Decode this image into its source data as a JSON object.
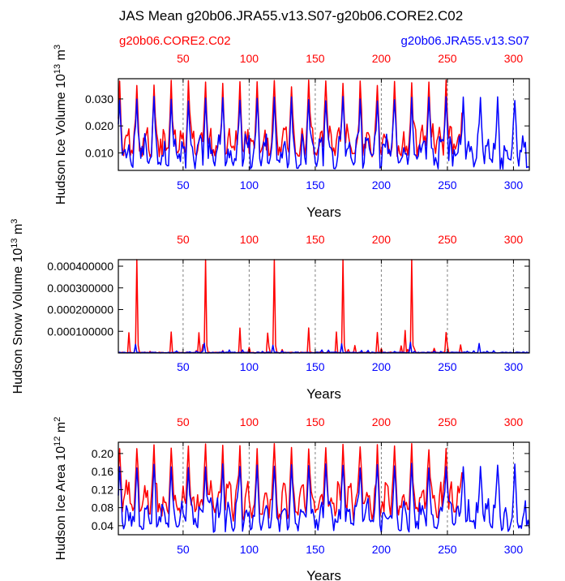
{
  "title": "JAS Mean g20b06.JRA55.v13.S07-g20b06.CORE2.C02",
  "legend": {
    "red_label": "g20b06.CORE2.C02",
    "blue_label": "g20b06.JRA55.v13.S07"
  },
  "colors": {
    "red": "#ff0000",
    "blue": "#0000ff",
    "axis": "#000000",
    "grid": "#808080"
  },
  "chart_data": [
    {
      "type": "line",
      "id": "ice-volume",
      "ylabel": "Hudson Ice Volume 10^13 m^3",
      "ylabel_base": "Hudson Ice Volume 10",
      "ylabel_exp": "13",
      "ylabel_unit": "m",
      "ylabel_unit_exp": "3",
      "xlabel": "Years",
      "xlim": [
        1,
        312
      ],
      "ylim": [
        0.0035,
        0.0375
      ],
      "yticks": [
        0.01,
        0.02,
        0.03
      ],
      "ytick_labels": [
        "0.010",
        "0.020",
        "0.030"
      ],
      "top_x_ticks": [
        50,
        100,
        150,
        200,
        250,
        300
      ],
      "bottom_x_ticks": [
        50,
        100,
        150,
        200,
        250,
        300
      ],
      "grid_x": [
        50,
        100,
        150,
        200,
        250,
        300
      ],
      "series": [
        {
          "name": "g20b06.CORE2.C02",
          "color": "#ff0000",
          "n": 261,
          "base": 0.0135,
          "amp": 0.0045,
          "min": 0.0085,
          "peak": 0.037,
          "secondary_peak": 0.026,
          "seed": 11
        },
        {
          "name": "g20b06.JRA55.v13.S07",
          "color": "#0000ff",
          "n": 312,
          "base": 0.01,
          "amp": 0.0045,
          "min": 0.004,
          "peak": 0.031,
          "secondary_peak": 0.022,
          "seed": 29
        }
      ]
    },
    {
      "type": "line",
      "id": "snow-volume",
      "ylabel": "Hudson Snow Volume 10^13 m^3",
      "ylabel_base": "Hudson Snow Volume 10",
      "ylabel_exp": "13",
      "ylabel_unit": "m",
      "ylabel_unit_exp": "3",
      "xlabel": "Years",
      "xlim": [
        1,
        312
      ],
      "ylim": [
        0.0,
        0.00043
      ],
      "yticks": [
        0.0001,
        0.0002,
        0.0003,
        0.0004
      ],
      "ytick_labels": [
        "0.000100000",
        "0.000200000",
        "0.000300000",
        "0.000400000"
      ],
      "top_x_ticks": [
        50,
        100,
        150,
        200,
        250,
        300
      ],
      "bottom_x_ticks": [
        50,
        100,
        150,
        200,
        250,
        300
      ],
      "grid_x": [
        50,
        100,
        150,
        200,
        250,
        300
      ],
      "series": [
        {
          "name": "g20b06.CORE2.C02",
          "color": "#ff0000",
          "n": 261,
          "spiky": true,
          "big_peaks": [
            15,
            67,
            119,
            171,
            223
          ],
          "big_value": 0.00043,
          "mid_peaks": [
            9,
            41,
            62,
            93,
            114,
            145,
            166,
            197,
            218,
            249
          ],
          "mid_value": 0.00013,
          "seed": 5
        },
        {
          "name": "g20b06.JRA55.v13.S07",
          "color": "#0000ff",
          "n": 312,
          "spiky": true,
          "big_peaks": [],
          "big_value": 0.0,
          "mid_peaks": [
            14,
            66,
            118,
            170,
            222,
            274
          ],
          "mid_value": 5e-05,
          "seed": 17
        }
      ]
    },
    {
      "type": "line",
      "id": "ice-area",
      "ylabel": "Hudson Ice Area 10^12 m^2",
      "ylabel_base": "Hudson Ice Area 10",
      "ylabel_exp": "12",
      "ylabel_unit": "m",
      "ylabel_unit_exp": "2",
      "xlabel": "Years",
      "xlim": [
        1,
        312
      ],
      "ylim": [
        0.02,
        0.225
      ],
      "yticks": [
        0.04,
        0.08,
        0.12,
        0.16,
        0.2
      ],
      "ytick_labels": [
        "0.04",
        "0.08",
        "0.12",
        "0.16",
        "0.20"
      ],
      "top_x_ticks": [
        50,
        100,
        150,
        200,
        250,
        300
      ],
      "bottom_x_ticks": [
        50,
        100,
        150,
        200,
        250,
        300
      ],
      "grid_x": [
        50,
        100,
        150,
        200,
        250,
        300
      ],
      "series": [
        {
          "name": "g20b06.CORE2.C02",
          "color": "#ff0000",
          "n": 261,
          "base": 0.095,
          "amp": 0.028,
          "min": 0.04,
          "peak": 0.222,
          "secondary_peak": 0.165,
          "seed": 41
        },
        {
          "name": "g20b06.JRA55.v13.S07",
          "color": "#0000ff",
          "n": 312,
          "base": 0.062,
          "amp": 0.025,
          "min": 0.025,
          "peak": 0.18,
          "secondary_peak": 0.13,
          "seed": 53
        }
      ]
    }
  ]
}
